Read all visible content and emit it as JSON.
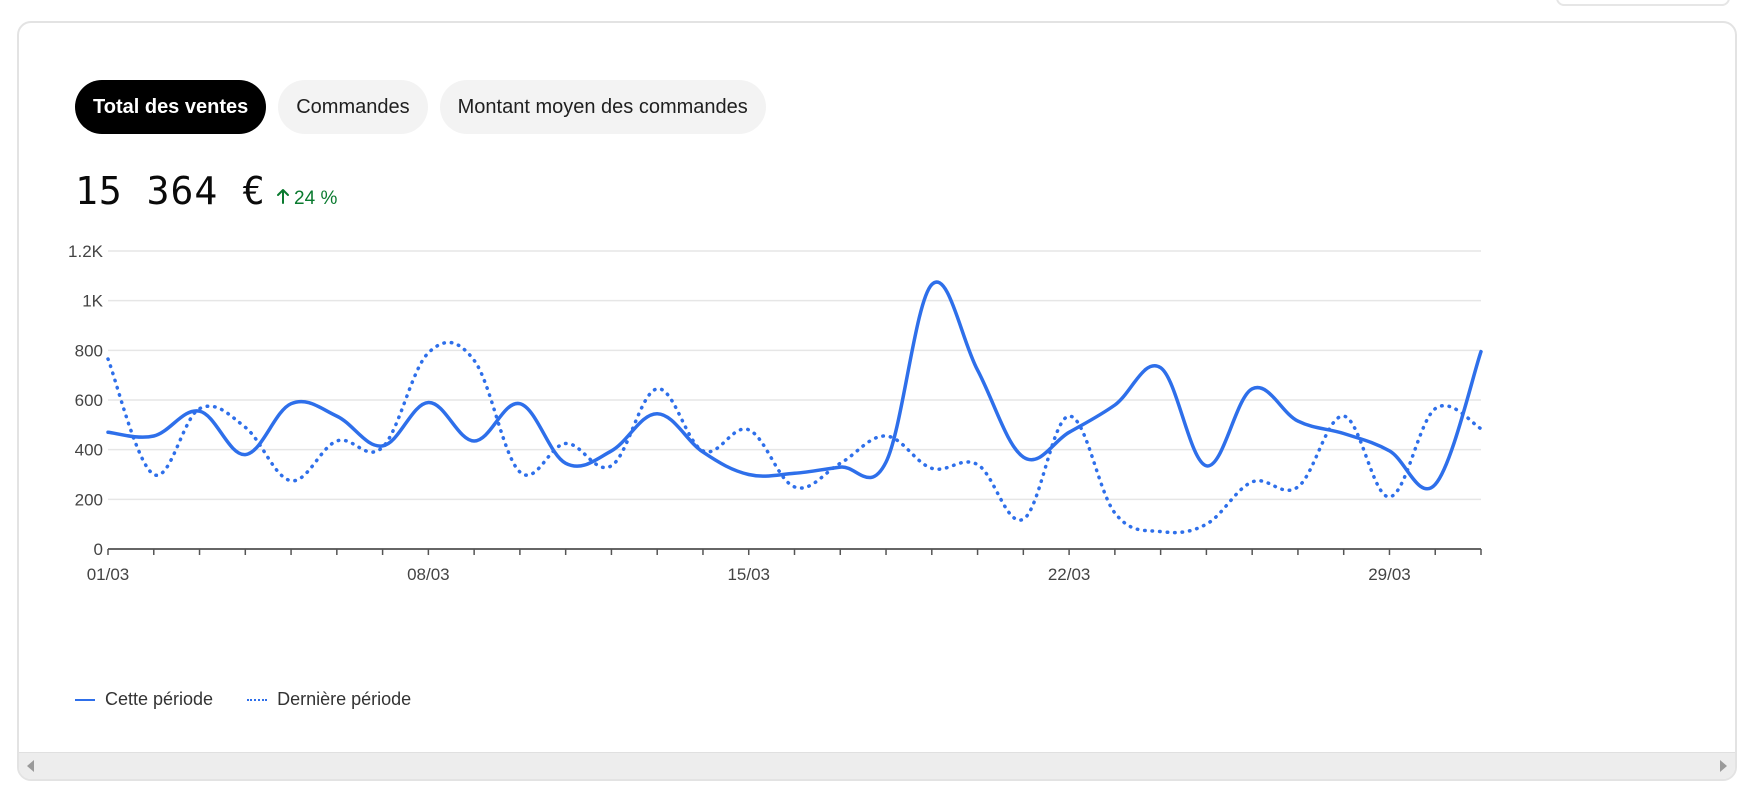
{
  "tabs": [
    {
      "label": "Total des ventes",
      "active": true
    },
    {
      "label": "Commandes",
      "active": false
    },
    {
      "label": "Montant moyen des commandes",
      "active": false
    }
  ],
  "metric": {
    "value": "15 364 €",
    "delta": "24 %",
    "delta_direction": "up",
    "delta_color": "#0a7a2f"
  },
  "legend": {
    "current": "Cette période",
    "previous": "Dernière période"
  },
  "chart_data": {
    "type": "line",
    "x": [
      "01/03",
      "02/03",
      "03/03",
      "04/03",
      "05/03",
      "06/03",
      "07/03",
      "08/03",
      "09/03",
      "10/03",
      "11/03",
      "12/03",
      "13/03",
      "14/03",
      "15/03",
      "16/03",
      "17/03",
      "18/03",
      "19/03",
      "20/03",
      "21/03",
      "22/03",
      "23/03",
      "24/03",
      "25/03",
      "26/03",
      "27/03",
      "28/03",
      "29/03",
      "30/03",
      "31/03"
    ],
    "x_tick_labels": [
      "01/03",
      "08/03",
      "15/03",
      "22/03",
      "29/03"
    ],
    "y_ticks": [
      0,
      200,
      400,
      600,
      800,
      1000,
      1200
    ],
    "y_tick_labels": [
      "0",
      "200",
      "400",
      "600",
      "800",
      "1K",
      "1.2K"
    ],
    "ylim": [
      0,
      1200
    ],
    "grid": true,
    "legend_position": "bottom-left",
    "series": [
      {
        "name": "Cette période",
        "style": "solid",
        "color": "#2e6fea",
        "values": [
          470,
          455,
          555,
          380,
          585,
          535,
          415,
          590,
          435,
          585,
          345,
          395,
          545,
          390,
          300,
          305,
          330,
          350,
          1065,
          720,
          370,
          470,
          580,
          730,
          335,
          645,
          515,
          465,
          395,
          260,
          795
        ]
      },
      {
        "name": "Dernière période",
        "style": "dotted",
        "color": "#2e6fea",
        "values": [
          765,
          300,
          565,
          490,
          275,
          435,
          410,
          790,
          760,
          310,
          425,
          335,
          645,
          395,
          480,
          250,
          345,
          455,
          325,
          340,
          120,
          535,
          145,
          70,
          100,
          270,
          250,
          535,
          210,
          565,
          485
        ]
      }
    ]
  }
}
